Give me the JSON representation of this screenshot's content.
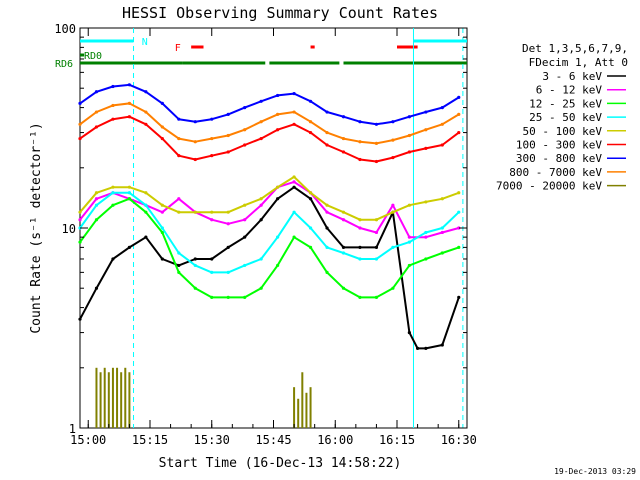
{
  "chart_data": {
    "type": "line",
    "title": "HESSI Observing Summary Count Rates",
    "xlabel": "Start Time (16-Dec-13 14:58:22)",
    "ylabel": "Count Rate (s⁻¹ detector⁻¹)",
    "yscale": "log",
    "ylim": [
      1,
      100
    ],
    "xlim": [
      0,
      94
    ],
    "x_ticks": [
      {
        "t": 2,
        "label": "15:00"
      },
      {
        "t": 17,
        "label": "15:15"
      },
      {
        "t": 32,
        "label": "15:30"
      },
      {
        "t": 47,
        "label": "15:45"
      },
      {
        "t": 62,
        "label": "16:00"
      },
      {
        "t": 77,
        "label": "16:15"
      },
      {
        "t": 92,
        "label": "16:30"
      }
    ],
    "y_ticks": [
      {
        "v": 1,
        "label": "1"
      },
      {
        "v": 10,
        "label": "10"
      },
      {
        "v": 100,
        "label": "100"
      }
    ],
    "legend_header": [
      "Det 1,3,5,6,7,9,",
      "FDecim 1, Att 0"
    ],
    "legend_position": "right",
    "grid": false,
    "series": [
      {
        "name": "3 - 6 keV",
        "color": "#000000",
        "t": [
          0,
          4,
          8,
          12,
          16,
          20,
          24,
          28,
          32,
          36,
          40,
          44,
          48,
          52,
          56,
          60,
          64,
          68,
          72,
          76,
          80,
          82,
          84,
          88,
          92
        ],
        "values": [
          3.5,
          5,
          7,
          8,
          9,
          7,
          6.5,
          7,
          7,
          8,
          9,
          11,
          14,
          16,
          14,
          10,
          8,
          8,
          8,
          12,
          3,
          2.5,
          2.5,
          2.6,
          4.5
        ]
      },
      {
        "name": "6 - 12 keV",
        "color": "#ff00ff",
        "t": [
          0,
          4,
          8,
          12,
          16,
          20,
          24,
          28,
          32,
          36,
          40,
          44,
          48,
          52,
          56,
          60,
          64,
          68,
          72,
          76,
          80,
          84,
          88,
          92
        ],
        "values": [
          11,
          14,
          15,
          14,
          13,
          12,
          14,
          12,
          11,
          10.5,
          11,
          13,
          16,
          17,
          15,
          12,
          11,
          10,
          9.5,
          13,
          9,
          9,
          9.5,
          10
        ]
      },
      {
        "name": "12 - 25 keV",
        "color": "#00ff00",
        "t": [
          0,
          4,
          8,
          12,
          16,
          20,
          24,
          28,
          32,
          36,
          40,
          44,
          48,
          52,
          56,
          60,
          64,
          68,
          72,
          76,
          80,
          84,
          88,
          92
        ],
        "values": [
          8.5,
          11,
          13,
          14,
          12,
          9.5,
          6,
          5,
          4.5,
          4.5,
          4.5,
          5,
          6.5,
          9,
          8,
          6,
          5,
          4.5,
          4.5,
          5,
          6.5,
          7,
          7.5,
          8
        ]
      },
      {
        "name": "25 - 50 keV",
        "color": "#00ffff",
        "t": [
          0,
          4,
          8,
          12,
          16,
          20,
          24,
          28,
          32,
          36,
          40,
          44,
          48,
          52,
          56,
          60,
          64,
          68,
          72,
          76,
          80,
          84,
          88,
          92
        ],
        "values": [
          10,
          13,
          15,
          15,
          13,
          10,
          7.5,
          6.5,
          6,
          6,
          6.5,
          7,
          9,
          12,
          10,
          8,
          7.5,
          7,
          7,
          8,
          8.5,
          9.5,
          10,
          12
        ]
      },
      {
        "name": "50 - 100 keV",
        "color": "#cccc00",
        "t": [
          0,
          4,
          8,
          12,
          16,
          20,
          24,
          28,
          32,
          36,
          40,
          44,
          48,
          52,
          56,
          60,
          64,
          68,
          72,
          76,
          80,
          84,
          88,
          92
        ],
        "values": [
          12,
          15,
          16,
          16,
          15,
          13,
          12,
          12,
          12,
          12,
          13,
          14,
          16,
          18,
          15,
          13,
          12,
          11,
          11,
          12,
          13,
          13.5,
          14,
          15
        ]
      },
      {
        "name": "100 - 300 keV",
        "color": "#ff0000",
        "t": [
          0,
          4,
          8,
          12,
          16,
          20,
          24,
          28,
          32,
          36,
          40,
          44,
          48,
          52,
          56,
          60,
          64,
          68,
          72,
          76,
          80,
          84,
          88,
          92
        ],
        "values": [
          28,
          32,
          35,
          36,
          33,
          28,
          23,
          22,
          23,
          24,
          26,
          28,
          31,
          33,
          30,
          26,
          24,
          22,
          21.5,
          22.5,
          24,
          25,
          26,
          30
        ]
      },
      {
        "name": "300 - 800 keV",
        "color": "#0000ff",
        "t": [
          0,
          4,
          8,
          12,
          16,
          20,
          24,
          28,
          32,
          36,
          40,
          44,
          48,
          52,
          56,
          60,
          64,
          68,
          72,
          76,
          80,
          84,
          88,
          92
        ],
        "values": [
          42,
          48,
          51,
          52,
          48,
          42,
          35,
          34,
          35,
          37,
          40,
          43,
          46,
          47,
          43,
          38,
          36,
          34,
          33,
          34,
          36,
          38,
          40,
          45
        ]
      },
      {
        "name": "800 - 7000 keV",
        "color": "#ff8000",
        "t": [
          0,
          4,
          8,
          12,
          16,
          20,
          24,
          28,
          32,
          36,
          40,
          44,
          48,
          52,
          56,
          60,
          64,
          68,
          72,
          76,
          80,
          84,
          88,
          92
        ],
        "values": [
          33,
          38,
          41,
          42,
          38,
          32,
          28,
          27,
          28,
          29,
          31,
          34,
          37,
          38,
          34,
          30,
          28,
          27,
          26.5,
          27.5,
          29,
          31,
          33,
          37
        ]
      },
      {
        "name": "7000 - 20000 keV",
        "color": "#808000",
        "t": [
          4,
          5,
          6,
          7,
          8,
          9,
          10,
          11,
          12,
          52,
          53,
          54,
          55,
          56
        ],
        "values": [
          2,
          1.9,
          2,
          1.9,
          2,
          2,
          1.9,
          2,
          1.9,
          1.6,
          1.4,
          1.9,
          1.5,
          1.6
        ]
      }
    ],
    "attenuator_bars": [
      {
        "label": "RD6",
        "color": "#008000",
        "segments": [
          [
            0,
            25
          ],
          [
            25,
            45
          ],
          [
            46,
            63
          ],
          [
            64,
            94
          ]
        ]
      },
      {
        "label": "RD0",
        "color": "#008000",
        "segments": [
          [
            0,
            1
          ]
        ]
      },
      {
        "label": "N",
        "color": "#00ffff",
        "segments": [
          [
            0,
            13
          ],
          [
            81,
            94
          ]
        ]
      },
      {
        "label": "F",
        "color": "#ff0000",
        "segments": [
          [
            27,
            30
          ],
          [
            56,
            57
          ],
          [
            77,
            82
          ]
        ]
      }
    ]
  },
  "timestamp": "19-Dec-2013 03:29"
}
